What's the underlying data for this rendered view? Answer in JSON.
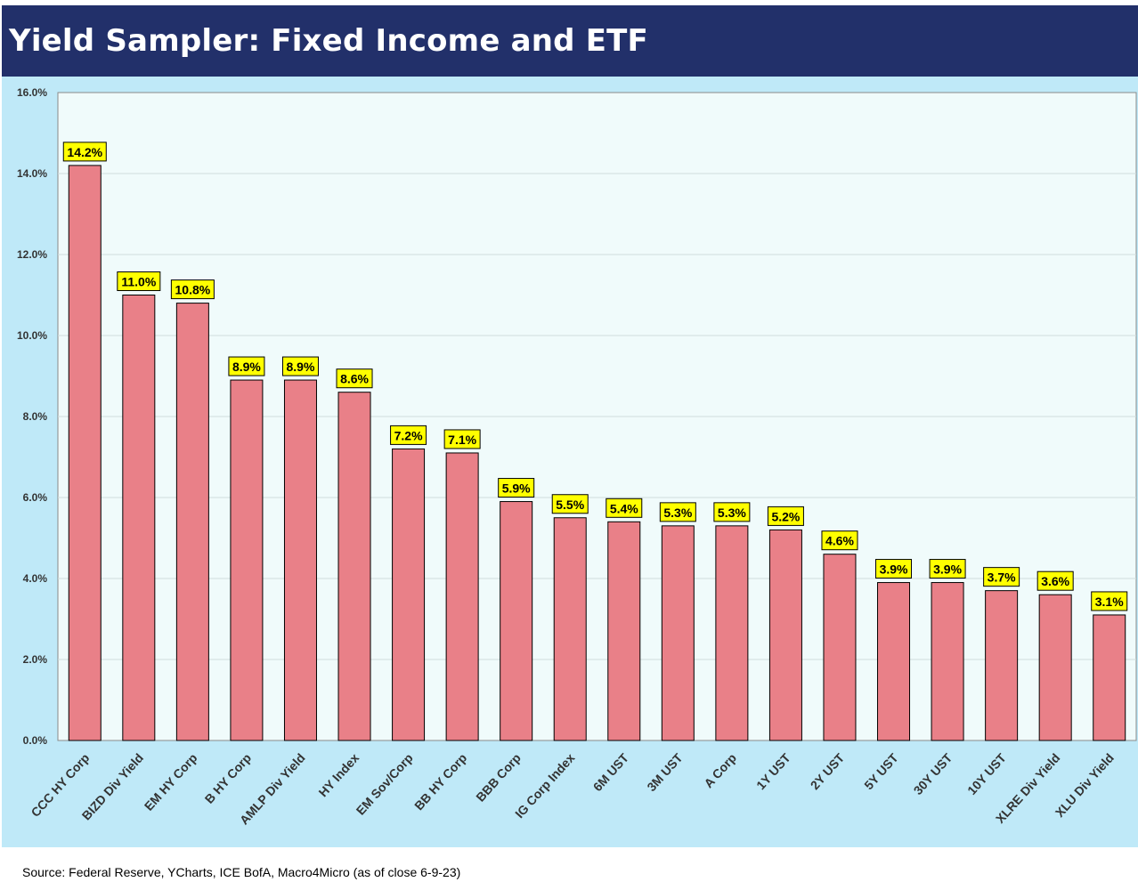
{
  "header": {
    "title": "Yield Sampler: Fixed Income and ETF"
  },
  "footer": {
    "source": "Source: Federal Reserve, YCharts, ICE BofA, Macro4Micro (as of close 6-9-23)"
  },
  "colors": {
    "header_bg": "#22306a",
    "chart_bg": "#bfe9f8",
    "plot_bg": "#f0fbfb",
    "bar_fill": "#e98088",
    "label_bg": "#ffff00"
  },
  "chart_data": {
    "type": "bar",
    "title": "",
    "xlabel": "",
    "ylabel": "",
    "ylim": [
      0,
      16
    ],
    "y_ticks": [
      "0.0%",
      "2.0%",
      "4.0%",
      "6.0%",
      "8.0%",
      "10.0%",
      "12.0%",
      "14.0%",
      "16.0%"
    ],
    "grid": true,
    "legend": "none",
    "categories": [
      "CCC HY Corp",
      "BIZD Div Yield",
      "EM HY Corp",
      "B HY Corp",
      "AMLP Div Yield",
      "HY Index",
      "EM Sov/Corp",
      "BB HY Corp",
      "BBB Corp",
      "IG Corp Index",
      "6M UST",
      "3M UST",
      "A Corp",
      "1Y UST",
      "2Y UST",
      "5Y UST",
      "30Y UST",
      "10Y UST",
      "XLRE Div Yield",
      "XLU Div Yield"
    ],
    "values": [
      14.2,
      11.0,
      10.8,
      8.9,
      8.9,
      8.6,
      7.2,
      7.1,
      5.9,
      5.5,
      5.4,
      5.3,
      5.3,
      5.2,
      4.6,
      3.9,
      3.9,
      3.7,
      3.6,
      3.1
    ],
    "data_labels": [
      "14.2%",
      "11.0%",
      "10.8%",
      "8.9%",
      "8.9%",
      "8.6%",
      "7.2%",
      "7.1%",
      "5.9%",
      "5.5%",
      "5.4%",
      "5.3%",
      "5.3%",
      "5.2%",
      "4.6%",
      "3.9%",
      "3.9%",
      "3.7%",
      "3.6%",
      "3.1%"
    ]
  }
}
